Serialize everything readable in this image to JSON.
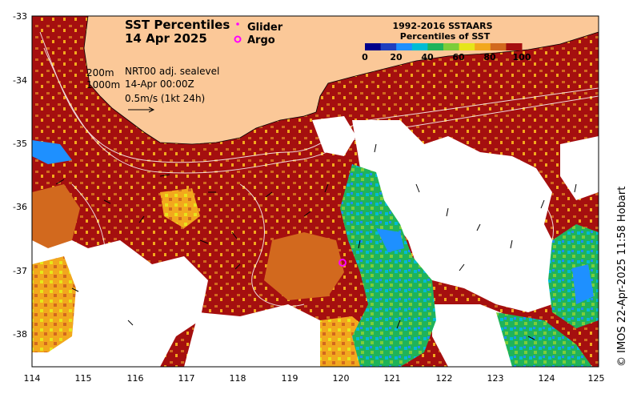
{
  "title": {
    "line1": "SST Percentiles",
    "line2": "14 Apr 2025"
  },
  "legend": {
    "glider_label": "Glider",
    "argo_label": "Argo",
    "glider_color": "#ff00ff",
    "argo_color": "#ff00ff"
  },
  "colorbar": {
    "title_line1": "1992-2016 SSTAARS",
    "title_line2": "Percentiles of SST",
    "ticks": [
      "0",
      "20",
      "40",
      "60",
      "80",
      "100"
    ],
    "colors": [
      "#00008b",
      "#1f3fbf",
      "#1e90ff",
      "#00bcd4",
      "#1fb35b",
      "#7ccd3a",
      "#e6e61a",
      "#f2a81d",
      "#d2691e",
      "#a50f0f"
    ]
  },
  "annotations": {
    "depth_200": "200m",
    "depth_1000": "1000m",
    "current_source": "NRT00 adj. sealevel",
    "current_time": "14-Apr 00:00Z",
    "vector_scale": "0.5m/s (1kt 24h)"
  },
  "axes": {
    "x_ticks": [
      "114",
      "115",
      "116",
      "117",
      "118",
      "119",
      "120",
      "121",
      "122",
      "123",
      "124",
      "125"
    ],
    "y_ticks": [
      "-33",
      "-34",
      "-35",
      "-36",
      "-37",
      "-38"
    ]
  },
  "credit": "© IMOS 22-Apr-2025 11:58 Hobart",
  "colors": {
    "land": "#fbc898",
    "high_percentile": "#a50f0f",
    "mid_high": "#d2691e",
    "orange": "#f2a81d",
    "yellow": "#e6e61a",
    "green": "#1fb35b",
    "cyan": "#00bcd4",
    "blue": "#1e90ff"
  },
  "argo_position": {
    "lon": 120.05,
    "lat": -36.88
  }
}
